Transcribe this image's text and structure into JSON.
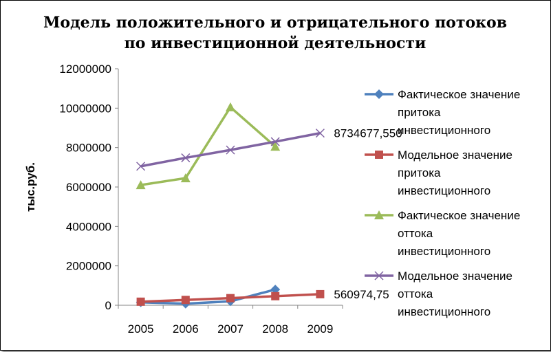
{
  "chart_data": {
    "type": "line",
    "title": "Модель положительного и отрицательного потоков по инвестиционной деятельности",
    "ylabel": "тыс.руб.",
    "xlabel": "",
    "categories": [
      "2005",
      "2006",
      "2007",
      "2008",
      "2009"
    ],
    "yticks": [
      "0",
      "2000000",
      "4000000",
      "6000000",
      "8000000",
      "10000000",
      "12000000"
    ],
    "ylim": [
      0,
      12000000
    ],
    "grid": false,
    "legend_position": "right",
    "series": [
      {
        "name": "Фактическое значение притока инвестиционного",
        "legend_lines": [
          "Фактическое значение",
          "притока",
          "инвестиционного"
        ],
        "color": "#4F81BD",
        "marker": "diamond",
        "values": [
          150000,
          80000,
          200000,
          800000,
          null
        ]
      },
      {
        "name": "Модельное значение притока инвестиционного",
        "legend_lines": [
          "Модельное значение",
          "притока",
          "инвестиционного"
        ],
        "color": "#C0504D",
        "marker": "square",
        "values": [
          180000,
          270000,
          360000,
          460000,
          560974.75
        ],
        "end_label": "560974,75"
      },
      {
        "name": "Фактическое значение оттока инвестиционного",
        "legend_lines": [
          "Фактическое значение",
          "оттока",
          "инвестиционного"
        ],
        "color": "#9BBB59",
        "marker": "triangle",
        "values": [
          6100000,
          6450000,
          10050000,
          8050000,
          null
        ]
      },
      {
        "name": "Модельное значение оттока инвестиционного",
        "legend_lines": [
          "Модельное значение",
          "оттока",
          "инвестиционного"
        ],
        "color": "#8064A2",
        "marker": "x",
        "values": [
          7050000,
          7480000,
          7880000,
          8300000,
          8734677.55
        ],
        "end_label": "8734677,550"
      }
    ]
  }
}
